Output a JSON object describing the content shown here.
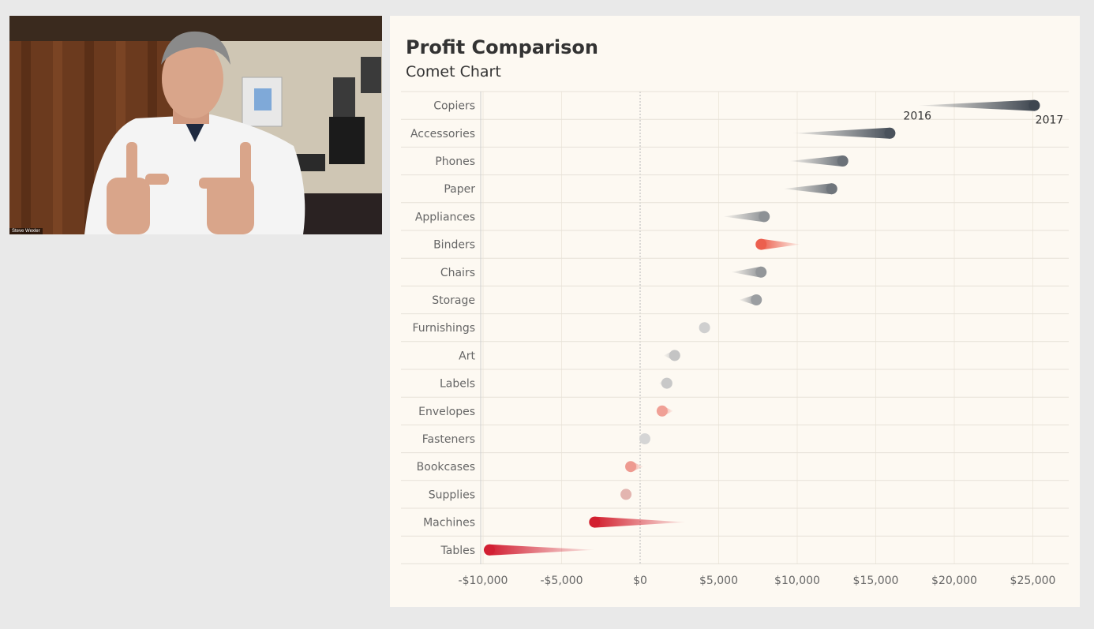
{
  "video": {
    "participant_name": "Steve Wexler",
    "colors": {
      "wall": "#d9d3c3",
      "curtain": "#6b3a1e",
      "shirt": "#f2f2f2",
      "skin": "#d9a58a"
    }
  },
  "chart_data": {
    "type": "comet",
    "title": "Profit Comparison",
    "subtitle": "Comet Chart",
    "xlim": [
      -10000,
      27000
    ],
    "x_ticks": [
      -10000,
      -5000,
      0,
      5000,
      10000,
      15000,
      20000,
      25000
    ],
    "x_tick_labels": [
      "-$10,000",
      "-$5,000",
      "$0",
      "$5,000",
      "$10,000",
      "$15,000",
      "$20,000",
      "$25,000"
    ],
    "annotations": [
      {
        "text": "2016",
        "category": "Copiers"
      },
      {
        "text": "2017",
        "category": "Copiers"
      }
    ],
    "categories": [
      "Copiers",
      "Accessories",
      "Phones",
      "Paper",
      "Appliances",
      "Binders",
      "Chairs",
      "Storage",
      "Furnishings",
      "Art",
      "Labels",
      "Envelopes",
      "Fasteners",
      "Bookcases",
      "Supplies",
      "Machines",
      "Tables"
    ],
    "profit_2016": [
      17700,
      9700,
      9500,
      9100,
      5300,
      10200,
      5800,
      6300,
      4100,
      1500,
      1200,
      2100,
      300,
      200,
      -900,
      2900,
      -2900
    ],
    "profit_2017": [
      25100,
      15900,
      12900,
      12200,
      7900,
      7700,
      7700,
      7400,
      4100,
      2200,
      1700,
      1400,
      300,
      -600,
      -900,
      -2900,
      -9600
    ],
    "colors": {
      "Copiers": "#3e4650",
      "Accessories": "#4a525c",
      "Phones": "#6b7178",
      "Paper": "#6f757b",
      "Appliances": "#8d9195",
      "Binders": "#ec5f4e",
      "Chairs": "#939699",
      "Storage": "#9b9ea1",
      "Furnishings": "#cfcfcf",
      "Art": "#c4c4c4",
      "Labels": "#c8c8c8",
      "Envelopes": "#f0a096",
      "Fasteners": "#d5d5d5",
      "Bookcases": "#ee9a90",
      "Supplies": "#e3b5b0",
      "Machines": "#d2202f",
      "Tables": "#d21f33"
    },
    "grid": true
  }
}
